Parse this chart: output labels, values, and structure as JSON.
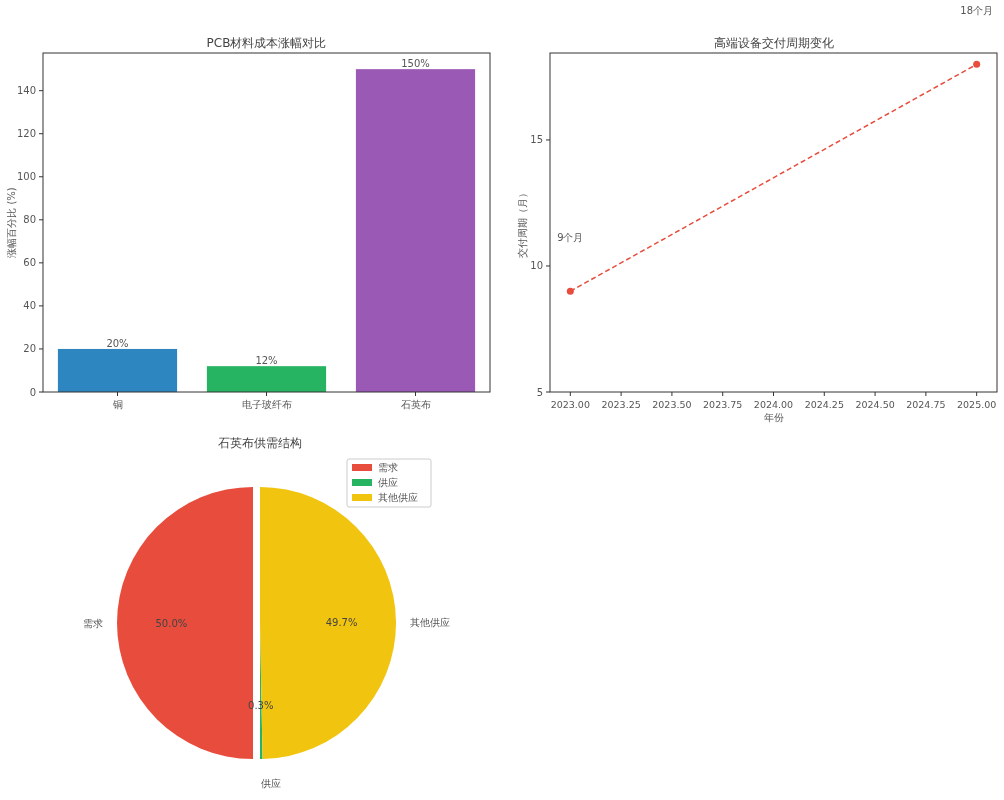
{
  "chart_data": [
    {
      "type": "bar",
      "title": "PCB材料成本涨幅对比",
      "ylabel": "涨幅百分比 (%)",
      "categories": [
        "铜",
        "电子玻纤布",
        "石英布"
      ],
      "values": [
        20,
        12,
        150
      ],
      "colors": [
        "#2e86c1",
        "#27b462",
        "#9b59b6"
      ],
      "value_labels": [
        "20%",
        "12%",
        "150%"
      ],
      "ylim": [
        0,
        157.5
      ],
      "yticks": [
        0,
        20,
        40,
        60,
        80,
        100,
        120,
        140
      ]
    },
    {
      "type": "line",
      "title": "高端设备交付周期变化",
      "xlabel": "年份",
      "ylabel": "交付周期（月）",
      "x": [
        2023,
        2025
      ],
      "values": [
        9,
        18
      ],
      "color": "#e74c3c",
      "marker": "circle",
      "line_style": "dashed",
      "xlim": [
        2022.9,
        2025.1
      ],
      "xticks": [
        {
          "value": 2023,
          "label": "2023.00"
        },
        {
          "value": 2023.25,
          "label": "2023.25"
        },
        {
          "value": 2023.5,
          "label": "2023.50"
        },
        {
          "value": 2023.75,
          "label": "2023.75"
        },
        {
          "value": 2024,
          "label": "2024.00"
        },
        {
          "value": 2024.25,
          "label": "2024.25"
        },
        {
          "value": 2024.5,
          "label": "2024.50"
        },
        {
          "value": 2024.75,
          "label": "2024.75"
        },
        {
          "value": 2025,
          "label": "2025.00"
        }
      ],
      "ylim": [
        5,
        18.45
      ],
      "yticks": [
        5,
        10,
        15
      ],
      "annotations": [
        "9个月",
        "18个月"
      ]
    },
    {
      "type": "pie",
      "title": "石英布供需结构",
      "categories": [
        "需求",
        "供应",
        "其他供应"
      ],
      "values": [
        50,
        0.3,
        49.7
      ],
      "colors": [
        "#e74c3c",
        "#27b462",
        "#f1c40f"
      ],
      "value_labels": [
        "50.0%",
        "0.3%",
        "49.7%"
      ],
      "legend": "top right"
    }
  ]
}
